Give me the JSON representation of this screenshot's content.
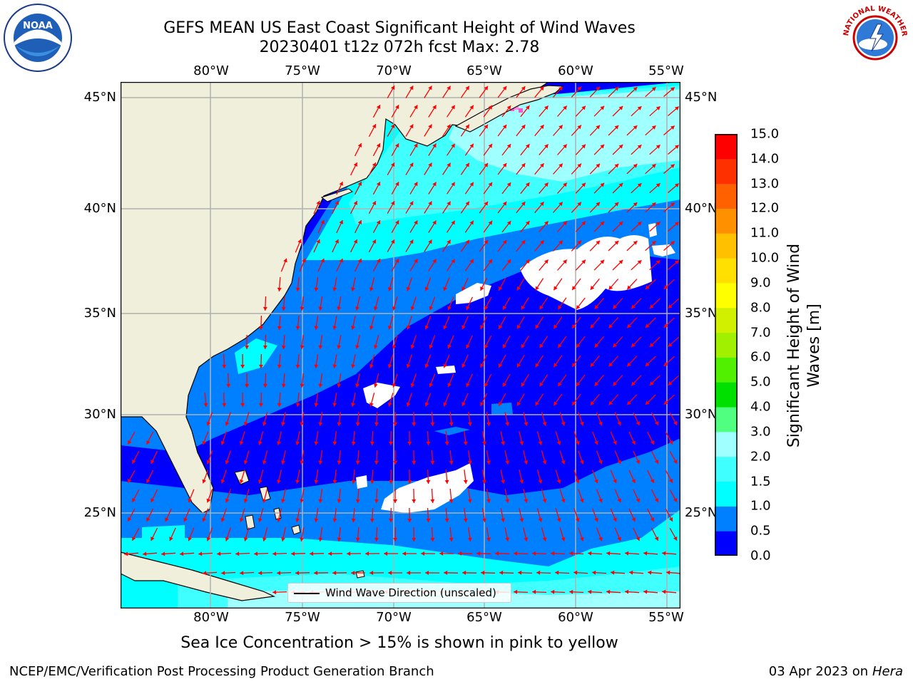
{
  "title": {
    "line1": "GEFS MEAN US East Coast Significant Height of Wind Waves",
    "line2": "20230401 t12z 072h fcst   Max: 2.78"
  },
  "map": {
    "lon_labels": [
      "80°W",
      "75°W",
      "70°W",
      "65°W",
      "60°W",
      "55°W"
    ],
    "lat_labels": [
      "45°N",
      "40°N",
      "35°N",
      "30°N",
      "25°N"
    ],
    "legend": "Wind Wave Direction (unscaled)",
    "colors": {
      "land": "#efefdc",
      "coast": "#000000",
      "gridlines": "#b0b0b0",
      "arrows": "#ff0000",
      "ice": "#ff55cc"
    }
  },
  "colorbar": {
    "title": "Significant Height of Wind Waves [m]",
    "labels": [
      "0.0",
      "0.5",
      "1.0",
      "1.5",
      "2.0",
      "3.0",
      "4.0",
      "5.0",
      "6.0",
      "7.0",
      "8.0",
      "9.0",
      "10.0",
      "11.0",
      "12.0",
      "13.0",
      "14.0",
      "15.0"
    ],
    "colors": [
      "#0000ff",
      "#0080ff",
      "#00ffff",
      "#40ffff",
      "#a0ffff",
      "#50ff80",
      "#00e000",
      "#50f000",
      "#a0f000",
      "#d0f000",
      "#ffff00",
      "#ffe000",
      "#ffc000",
      "#ff9000",
      "#ff6000",
      "#ff3000",
      "#ff0000"
    ]
  },
  "footnote": "Sea Ice Concentration > 15% is shown in pink to yellow",
  "credits": {
    "left": "NCEP/EMC/Verification Post Processing Product Generation Branch",
    "right_date": "03 Apr 2023 on",
    "right_host": "Hera"
  },
  "logos": {
    "noaa": "NOAA",
    "nws": "NATIONAL WEATHER SERVICE"
  }
}
